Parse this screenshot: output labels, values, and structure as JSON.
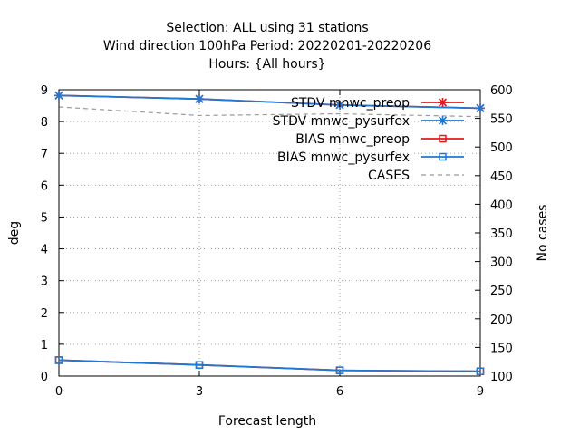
{
  "chart_data": {
    "type": "line",
    "title_lines": [
      "Selection: ALL using    31 stations",
      "Wind direction 100hPa   Period: 20220201-20220206",
      "Hours: {All hours}"
    ],
    "xlabel": "Forecast length",
    "ylabel": "deg",
    "y2label": "No cases",
    "x": [
      0,
      3,
      6,
      9
    ],
    "xlim": [
      0,
      9
    ],
    "ylim": [
      0,
      9
    ],
    "y2lim": [
      100,
      600
    ],
    "xticks": [
      "0",
      "3",
      "6",
      "9"
    ],
    "yticks": [
      "0",
      "1",
      "2",
      "3",
      "4",
      "5",
      "6",
      "7",
      "8",
      "9"
    ],
    "y2ticks": [
      "100",
      "150",
      "200",
      "250",
      "300",
      "350",
      "400",
      "450",
      "500",
      "550",
      "600"
    ],
    "grid": true,
    "legend_position": "top-right",
    "series": [
      {
        "name": "STDV mnwc_preop",
        "axis": "left",
        "color": "#e41a1c",
        "marker": "star",
        "dash": "solid",
        "values": [
          8.82,
          8.71,
          8.52,
          8.42
        ]
      },
      {
        "name": "STDV mnwc_pysurfex",
        "axis": "left",
        "color": "#1f78d4",
        "marker": "star",
        "dash": "solid",
        "values": [
          8.82,
          8.71,
          8.52,
          8.42
        ]
      },
      {
        "name": "BIAS mnwc_preop",
        "axis": "left",
        "color": "#e41a1c",
        "marker": "square",
        "dash": "solid",
        "values": [
          0.5,
          0.35,
          0.18,
          0.15
        ]
      },
      {
        "name": "BIAS mnwc_pysurfex",
        "axis": "left",
        "color": "#1f78d4",
        "marker": "square",
        "dash": "solid",
        "values": [
          0.5,
          0.35,
          0.18,
          0.15
        ]
      },
      {
        "name": "CASES",
        "axis": "right",
        "color": "#999999",
        "marker": "none",
        "dash": "dashed",
        "values": [
          570,
          555,
          558,
          553
        ]
      }
    ]
  }
}
